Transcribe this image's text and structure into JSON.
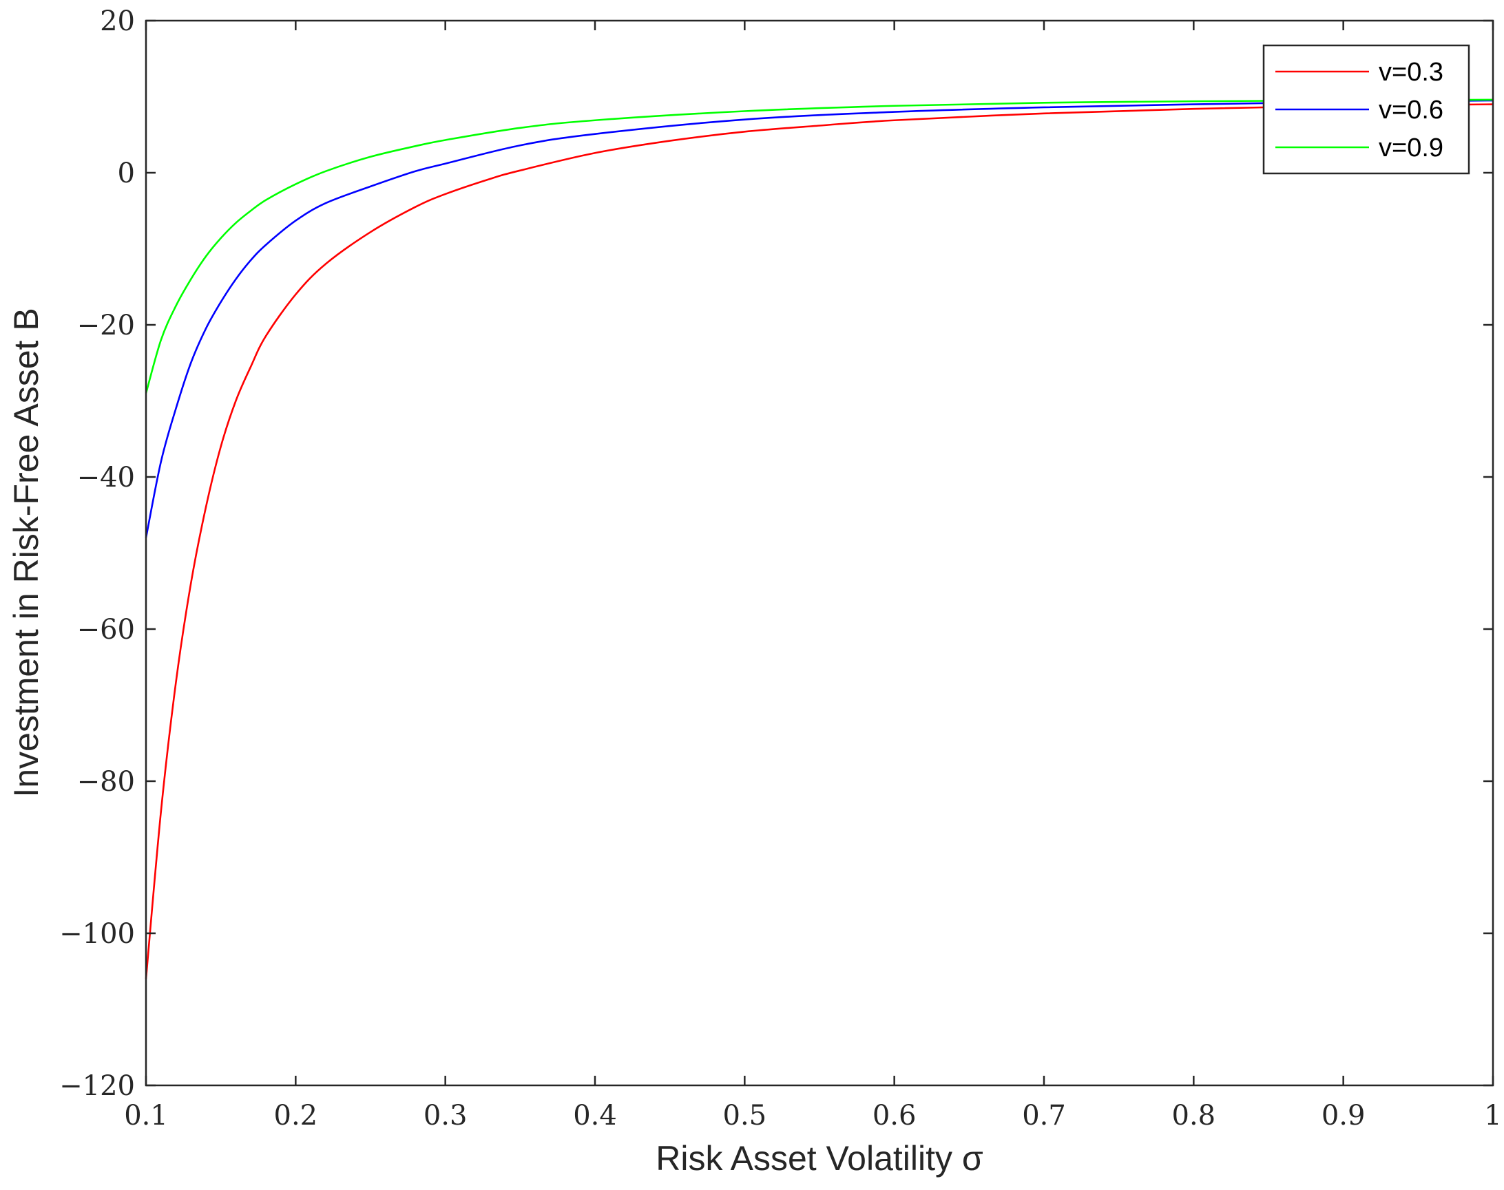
{
  "chart_data": {
    "type": "line",
    "xlabel": "Risk Asset Volatility σ",
    "ylabel": "Investment in Risk-Free Asset B",
    "xlim": [
      0.1,
      1
    ],
    "ylim": [
      -120,
      20
    ],
    "xticks": [
      0.1,
      0.2,
      0.3,
      0.4,
      0.5,
      0.6,
      0.7,
      0.8,
      0.9,
      1
    ],
    "xtick_labels": [
      "0.1",
      "0.2",
      "0.3",
      "0.4",
      "0.5",
      "0.6",
      "0.7",
      "0.8",
      "0.9",
      "1"
    ],
    "yticks": [
      20,
      0,
      -20,
      -40,
      -60,
      -80,
      -100,
      -120
    ],
    "ytick_labels": [
      "20",
      "0",
      "−20",
      "−40",
      "−60",
      "−80",
      "−100",
      "−120"
    ],
    "grid": false,
    "legend_position": "top-right",
    "series": [
      {
        "name": "v=0.3",
        "color": "#ff0000",
        "x": [
          0.1,
          0.11,
          0.12,
          0.13,
          0.14,
          0.15,
          0.16,
          0.17,
          0.18,
          0.2,
          0.22,
          0.25,
          0.28,
          0.3,
          0.33,
          0.35,
          0.4,
          0.45,
          0.5,
          0.55,
          0.6,
          0.7,
          0.8,
          0.9,
          1.0
        ],
        "values": [
          -106,
          -84,
          -67,
          -54,
          -44,
          -36,
          -30,
          -25.5,
          -21.5,
          -16,
          -12,
          -7.8,
          -4.5,
          -2.8,
          -0.8,
          0.3,
          2.6,
          4.2,
          5.4,
          6.2,
          6.9,
          7.8,
          8.4,
          8.8,
          9.0
        ]
      },
      {
        "name": "v=0.6",
        "color": "#0000ff",
        "x": [
          0.1,
          0.11,
          0.12,
          0.13,
          0.14,
          0.15,
          0.16,
          0.17,
          0.18,
          0.2,
          0.22,
          0.25,
          0.28,
          0.3,
          0.35,
          0.4,
          0.5,
          0.6,
          0.7,
          0.8,
          0.9,
          1.0
        ],
        "values": [
          -48,
          -38,
          -31,
          -25,
          -20.5,
          -17,
          -14,
          -11.5,
          -9.5,
          -6.3,
          -4,
          -1.8,
          0.2,
          1.2,
          3.6,
          5.1,
          7.0,
          8.0,
          8.6,
          9.0,
          9.3,
          9.5
        ]
      },
      {
        "name": "v=0.9",
        "color": "#00ff00",
        "x": [
          0.1,
          0.11,
          0.12,
          0.13,
          0.14,
          0.15,
          0.16,
          0.17,
          0.18,
          0.2,
          0.22,
          0.25,
          0.28,
          0.3,
          0.35,
          0.4,
          0.5,
          0.6,
          0.7,
          0.8,
          0.9,
          1.0
        ],
        "values": [
          -29,
          -22,
          -17.5,
          -14,
          -11,
          -8.6,
          -6.6,
          -5,
          -3.6,
          -1.5,
          0.2,
          2.1,
          3.5,
          4.3,
          5.9,
          6.9,
          8.1,
          8.8,
          9.2,
          9.4,
          9.5,
          9.6
        ]
      }
    ]
  }
}
